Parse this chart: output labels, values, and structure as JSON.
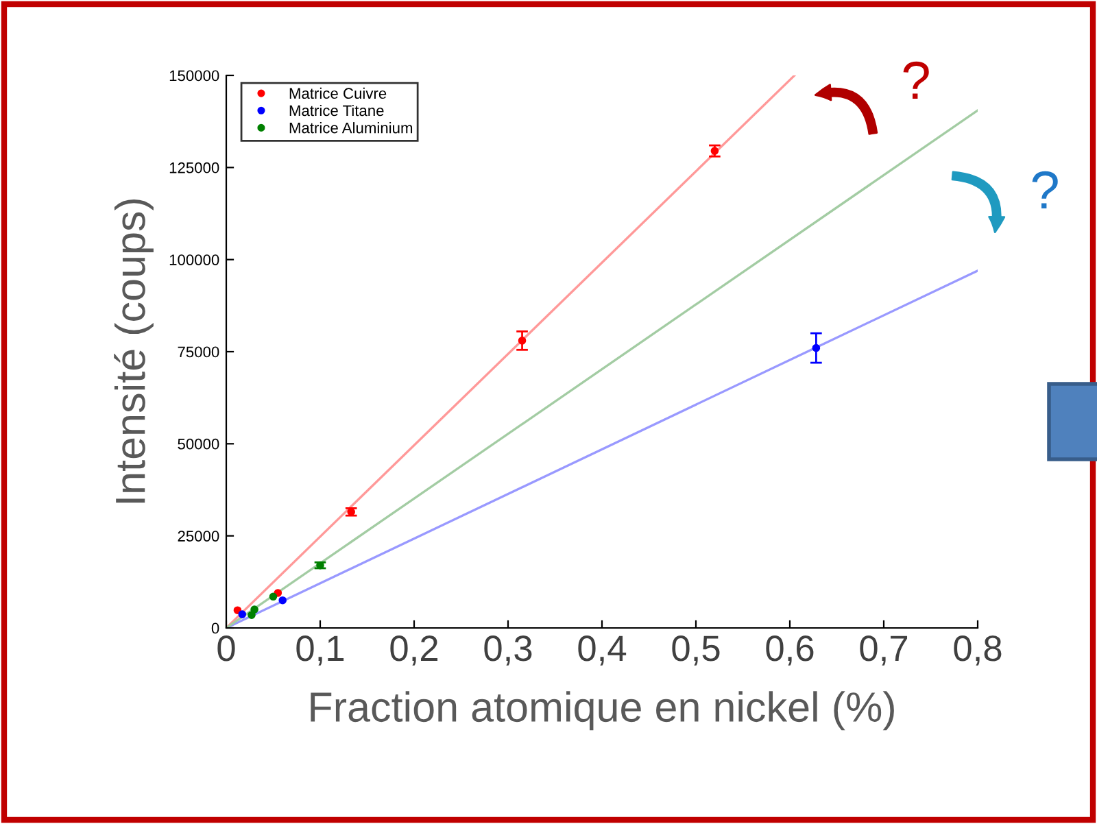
{
  "chart_data": {
    "type": "scatter",
    "xlabel": "Fraction atomique en nickel (%)",
    "ylabel": "Intensité (coups)",
    "xlim": [
      0,
      0.8
    ],
    "ylim": [
      0,
      150000
    ],
    "xticks": [
      {
        "value": 0,
        "label": "0"
      },
      {
        "value": 0.1,
        "label": "0,1"
      },
      {
        "value": 0.2,
        "label": "0,2"
      },
      {
        "value": 0.3,
        "label": "0,3"
      },
      {
        "value": 0.4,
        "label": "0,4"
      },
      {
        "value": 0.5,
        "label": "0,5"
      },
      {
        "value": 0.6,
        "label": "0,6"
      },
      {
        "value": 0.7,
        "label": "0,7"
      },
      {
        "value": 0.8,
        "label": "0,8"
      }
    ],
    "yticks": [
      0,
      25000,
      50000,
      75000,
      100000,
      125000,
      150000
    ],
    "legend": "top left",
    "grid": false,
    "annotations": [
      "?",
      "?"
    ],
    "series": [
      {
        "name": "Matrice Cuivre",
        "marker": "circle",
        "color": "#ff0000",
        "x": [
          0.012,
          0.055,
          0.133,
          0.315,
          0.52
        ],
        "values": [
          4800,
          9500,
          31500,
          78000,
          129500
        ],
        "errors": [
          null,
          null,
          1000,
          2500,
          1500
        ]
      },
      {
        "name": "Matrice Titane",
        "marker": "circle",
        "color": "#0000ff",
        "x": [
          0.017,
          0.06,
          0.628
        ],
        "values": [
          3700,
          7500,
          76000
        ],
        "errors": [
          null,
          null,
          4000
        ]
      },
      {
        "name": "Matrice Aluminium",
        "marker": "circle",
        "color": "#008000",
        "x": [
          0.027,
          0.03,
          0.05,
          0.1
        ],
        "values": [
          3500,
          5000,
          8500,
          17000
        ],
        "errors": [
          null,
          null,
          null,
          800
        ]
      },
      {
        "type": "line",
        "color": "#ff9999",
        "x": [
          0,
          0.605
        ],
        "values": [
          0,
          150000
        ]
      },
      {
        "type": "line",
        "color": "#9999ff",
        "x": [
          0,
          0.8
        ],
        "values": [
          0,
          97000
        ]
      },
      {
        "type": "line",
        "color": "#a3cca3",
        "x": [
          0,
          0.8
        ],
        "values": [
          0,
          140500
        ]
      }
    ]
  }
}
